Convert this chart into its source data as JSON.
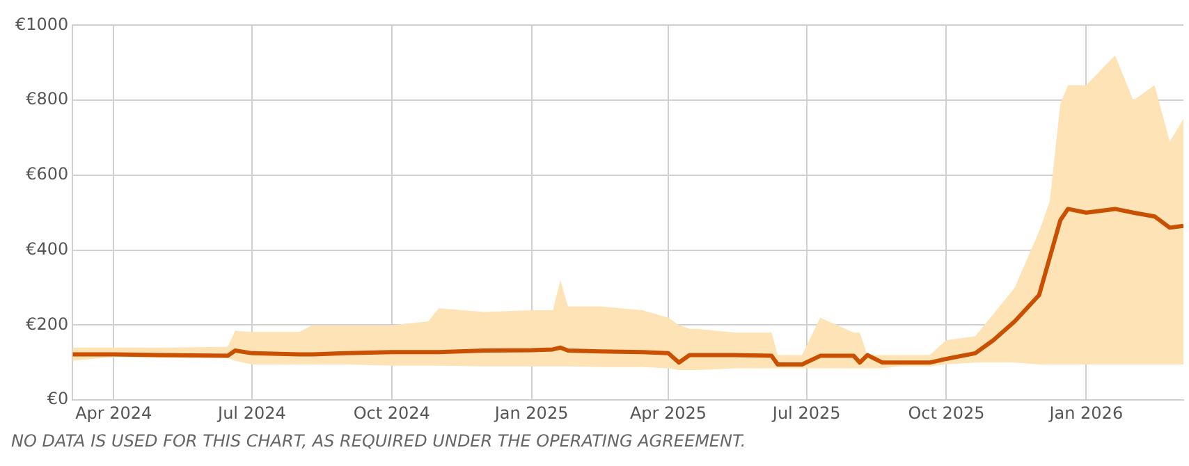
{
  "chart_data": {
    "type": "line",
    "x": [
      "2024-03-05",
      "2024-04-01",
      "2024-05-01",
      "2024-06-15",
      "2024-06-20",
      "2024-07-01",
      "2024-08-01",
      "2024-08-10",
      "2024-09-01",
      "2024-10-01",
      "2024-10-25",
      "2024-11-01",
      "2024-12-01",
      "2025-01-01",
      "2025-01-15",
      "2025-01-20",
      "2025-01-25",
      "2025-02-15",
      "2025-03-15",
      "2025-04-01",
      "2025-04-08",
      "2025-04-15",
      "2025-04-20",
      "2025-05-15",
      "2025-06-08",
      "2025-06-12",
      "2025-06-28",
      "2025-07-10",
      "2025-08-01",
      "2025-08-05",
      "2025-08-10",
      "2025-08-20",
      "2025-09-01",
      "2025-09-20",
      "2025-10-01",
      "2025-10-20",
      "2025-11-01",
      "2025-11-15",
      "2025-12-01",
      "2025-12-08",
      "2025-12-15",
      "2025-12-20",
      "2026-01-01",
      "2026-01-20",
      "2026-02-01",
      "2026-02-15",
      "2026-02-25",
      "2026-03-06"
    ],
    "series": [
      {
        "color": "#c85000",
        "values": [
          122,
          122,
          120,
          118,
          132,
          125,
          122,
          122,
          125,
          128,
          128,
          128,
          132,
          133,
          135,
          140,
          132,
          130,
          128,
          125,
          100,
          120,
          120,
          120,
          118,
          95,
          95,
          118,
          118,
          100,
          120,
          100,
          100,
          100,
          110,
          125,
          160,
          210,
          280,
          380,
          480,
          510,
          500,
          510,
          500,
          490,
          460,
          465
        ],
        "lower": [
          105,
          115,
          112,
          112,
          105,
          95,
          95,
          95,
          95,
          92,
          92,
          92,
          90,
          90,
          90,
          90,
          90,
          88,
          88,
          85,
          80,
          80,
          80,
          85,
          85,
          85,
          85,
          85,
          85,
          85,
          85,
          85,
          90,
          90,
          95,
          100,
          100,
          100,
          95,
          95,
          95,
          95,
          95,
          95,
          95,
          95,
          95,
          95
        ],
        "upper": [
          140,
          140,
          140,
          142,
          185,
          182,
          182,
          200,
          200,
          200,
          210,
          245,
          235,
          240,
          240,
          320,
          250,
          250,
          240,
          220,
          200,
          190,
          190,
          180,
          180,
          120,
          120,
          220,
          180,
          180,
          120,
          120,
          120,
          120,
          160,
          170,
          230,
          300,
          450,
          530,
          790,
          840,
          840,
          920,
          800,
          840,
          690,
          750
        ]
      }
    ],
    "xlim": [
      "2024-03-05",
      "2026-03-06"
    ],
    "xticks": [
      {
        "value": "2024-04-01",
        "label": "Apr 2024"
      },
      {
        "value": "2024-07-01",
        "label": "Jul 2024"
      },
      {
        "value": "2024-10-01",
        "label": "Oct 2024"
      },
      {
        "value": "2025-01-01",
        "label": "Jan 2025"
      },
      {
        "value": "2025-04-01",
        "label": "Apr 2025"
      },
      {
        "value": "2025-07-01",
        "label": "Jul 2025"
      },
      {
        "value": "2025-10-01",
        "label": "Oct 2025"
      },
      {
        "value": "2026-01-01",
        "label": "Jan 2026"
      }
    ],
    "ylim": [
      0,
      1000
    ],
    "yticks": [
      {
        "value": 0,
        "label": "€0"
      },
      {
        "value": 200,
        "label": "€200"
      },
      {
        "value": 400,
        "label": "€400"
      },
      {
        "value": 600,
        "label": "€600"
      },
      {
        "value": 800,
        "label": "€800"
      },
      {
        "value": 1000,
        "label": "€1000"
      }
    ],
    "grid": true,
    "legend": false,
    "marker": "none",
    "line_style": "solid",
    "annotations": [
      "NO DATA IS USED FOR THIS CHART, AS REQUIRED UNDER THE OPERATING AGREEMENT."
    ]
  }
}
